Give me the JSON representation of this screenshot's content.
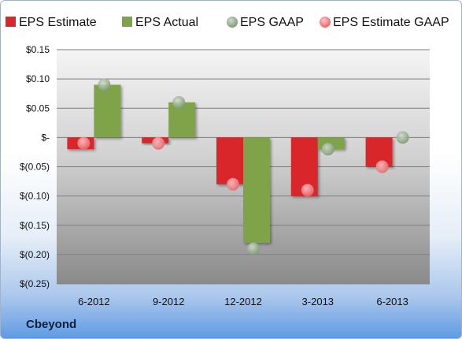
{
  "company": "Cbeyond",
  "colors": {
    "estimate": "#d9262b",
    "actual": "#7ea349",
    "gaap": "#7f9a77",
    "estimate_gaap": "#ef6f74"
  },
  "chart_data": {
    "type": "bar",
    "categories": [
      "6-2012",
      "9-2012",
      "12-2012",
      "3-2013",
      "6-2013"
    ],
    "series": [
      {
        "name": "EPS Estimate",
        "kind": "bar",
        "values": [
          -0.02,
          -0.01,
          -0.08,
          -0.1,
          -0.05
        ]
      },
      {
        "name": "EPS Actual",
        "kind": "bar",
        "values": [
          0.09,
          0.06,
          -0.18,
          -0.02,
          0.0
        ]
      },
      {
        "name": "EPS GAAP",
        "kind": "marker",
        "values": [
          0.09,
          0.06,
          -0.19,
          -0.02,
          0.0
        ]
      },
      {
        "name": "EPS Estimate GAAP",
        "kind": "marker",
        "values": [
          -0.01,
          -0.01,
          -0.08,
          -0.09,
          -0.05
        ]
      }
    ],
    "ylim": [
      -0.25,
      0.15
    ],
    "yticks": [
      0.15,
      0.1,
      0.05,
      0,
      -0.05,
      -0.1,
      -0.15,
      -0.2,
      -0.25
    ],
    "ytick_labels": [
      "$0.15",
      "$0.10",
      "$0.05",
      "$-",
      "$(0.05)",
      "$(0.10)",
      "$(0.15)",
      "$(0.20)",
      "$(0.25)"
    ],
    "grid": true,
    "legend_position": "top"
  }
}
